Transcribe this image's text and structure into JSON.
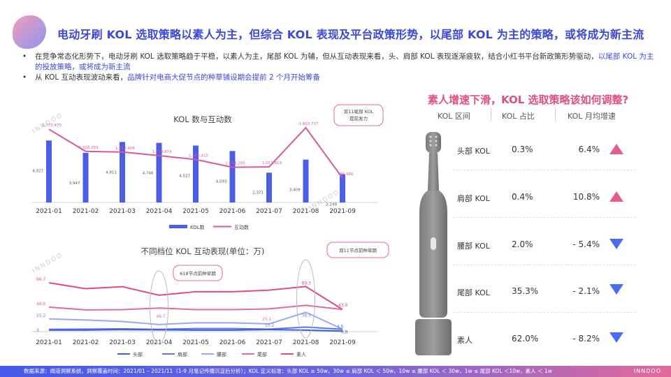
{
  "title": "电动牙刷 KOL 选取策略以素人为主，但综合 KOL 表现及平台政策形势，以尾部 KOL 为主的策略，或将成为新主流",
  "bullets": [
    {
      "plain": "在竞争常态化形势下，电动牙刷 KOL 选取策略趋于平稳，以素人为主，尾部 KOL 为辅，但从互动表现来看，头、肩部 KOL 表现逐渐疲软，结合小红书平台新政策形势驱动，",
      "highlight": "以尾部 KOL 为主的投放策略，或将成为新主流"
    },
    {
      "plain": "从 KOL 互动表现波动来看，",
      "highlight": "品牌针对电商大促节点的种草铺设期会提前 2 个月开始筹备"
    }
  ],
  "watermark": "INNDOO",
  "chart_data": [
    {
      "type": "bar+line",
      "title": "KOL 数与互动数",
      "categories": [
        "2021-01",
        "2021-02",
        "2021-03",
        "2021-04",
        "2021-05",
        "2021-06",
        "2021-07",
        "2021-08",
        "2021-09"
      ],
      "series": [
        {
          "name": "KOL数",
          "type": "bar",
          "values": [
            4927,
            3947,
            4811,
            4746,
            4527,
            4093,
            2371,
            3409,
            2249
          ],
          "labels": [
            "4,927",
            "3,947",
            "4,811",
            "4,746",
            "4,527",
            "4,093",
            "2,371",
            "3,409",
            "2,249"
          ],
          "color": "#4a5ee8"
        },
        {
          "name": "互动数",
          "type": "line",
          "values": [
            1773470,
            1326283,
            1312406,
            1239874,
            1160415,
            1003295,
            1011819,
            1803737,
            786466
          ],
          "labels": [
            "1,773,470",
            "1,326,283",
            "1,312,406",
            "1,239,874",
            "1,160,415",
            "1,003,295",
            "1,011,819",
            "1,803,737",
            "786,466"
          ],
          "color": "#d95a9a"
        }
      ],
      "annotation": {
        "line1": "双11尾部 KOL",
        "line2": "提前发力"
      },
      "legend": [
        "KOL数",
        "互动数"
      ]
    },
    {
      "type": "line",
      "title": "不同档位 KOL 互动表现(单位：万)",
      "categories": [
        "2021-01",
        "2021-02",
        "2021-03",
        "2021-04",
        "2021-05",
        "2021-06",
        "2021-07",
        "2021-08",
        "2021-09"
      ],
      "series": [
        {
          "name": "头部",
          "values": [
            3,
            3,
            4,
            3.5,
            3,
            3,
            4,
            3,
            1
          ],
          "color": "#3b5fd6"
        },
        {
          "name": "肩部",
          "values": [
            4.5,
            5,
            5.5,
            4.5,
            6,
            6,
            5,
            9,
            4.6
          ],
          "color": "#5b74e8"
        },
        {
          "name": "腰部",
          "values": [
            25.2,
            23,
            20,
            14,
            17.5,
            17.5,
            15.2,
            38.3,
            5
          ],
          "color": "#9aa8f5"
        },
        {
          "name": "尾部",
          "values": [
            48.6,
            43,
            43.5,
            46.7,
            43.5,
            43.5,
            45,
            52,
            43.9
          ],
          "color": "#e06aa0"
        },
        {
          "name": "素人",
          "values": [
            96.7,
            85,
            89,
            72,
            79,
            79,
            82,
            89.3,
            43.9
          ],
          "color": "#e24a80"
        }
      ],
      "point_labels": [
        "96.7",
        "48.6",
        "25.2",
        "3",
        "46.7",
        "25.1",
        "15.2",
        "89.3",
        "38.3",
        "43.9",
        "4.6",
        "0.9"
      ],
      "annotations": [
        "618节点前种草期",
        "双11节点前种草期"
      ],
      "legend": [
        "头部",
        "肩部",
        "腰部",
        "尾部",
        "素人"
      ]
    }
  ],
  "right_panel": {
    "title": "素人增速下滑，KOL 选取策略该如何调整?",
    "headers": [
      "KOL 区间",
      "KOL 占比",
      "KOL 月均增速"
    ],
    "rows": [
      {
        "label": "头部 KOL",
        "share": "0.3%",
        "growth": "6.4%",
        "trend": "up"
      },
      {
        "label": "肩部 KOL",
        "share": "0.4%",
        "growth": "10.8%",
        "trend": "up"
      },
      {
        "label": "腰部 KOL",
        "share": "2.0%",
        "growth": "- 5.4%",
        "trend": "down"
      },
      {
        "label": "尾部 KOL",
        "share": "35.3%",
        "growth": "- 2.1%",
        "trend": "down"
      },
      {
        "label": "素人",
        "share": "62.0%",
        "growth": "- 8.2%",
        "trend": "down"
      }
    ]
  },
  "footer": {
    "text": "数据来源：闻道洞察系统，洞察覆盖时间：2021/01 – 2021/11（1-9 月笔记传播沉淀后分析）；KOL 定义标准：头部 KOL ≥ 50w，30w ≤ 肩部 KOL ＜ 50w，10w ≤ 腰部 KOL ＜ 30w，1w ≤ 尾部 KOL ＜10w，素人 ＜ 1w",
    "brand": "INNDOO"
  }
}
